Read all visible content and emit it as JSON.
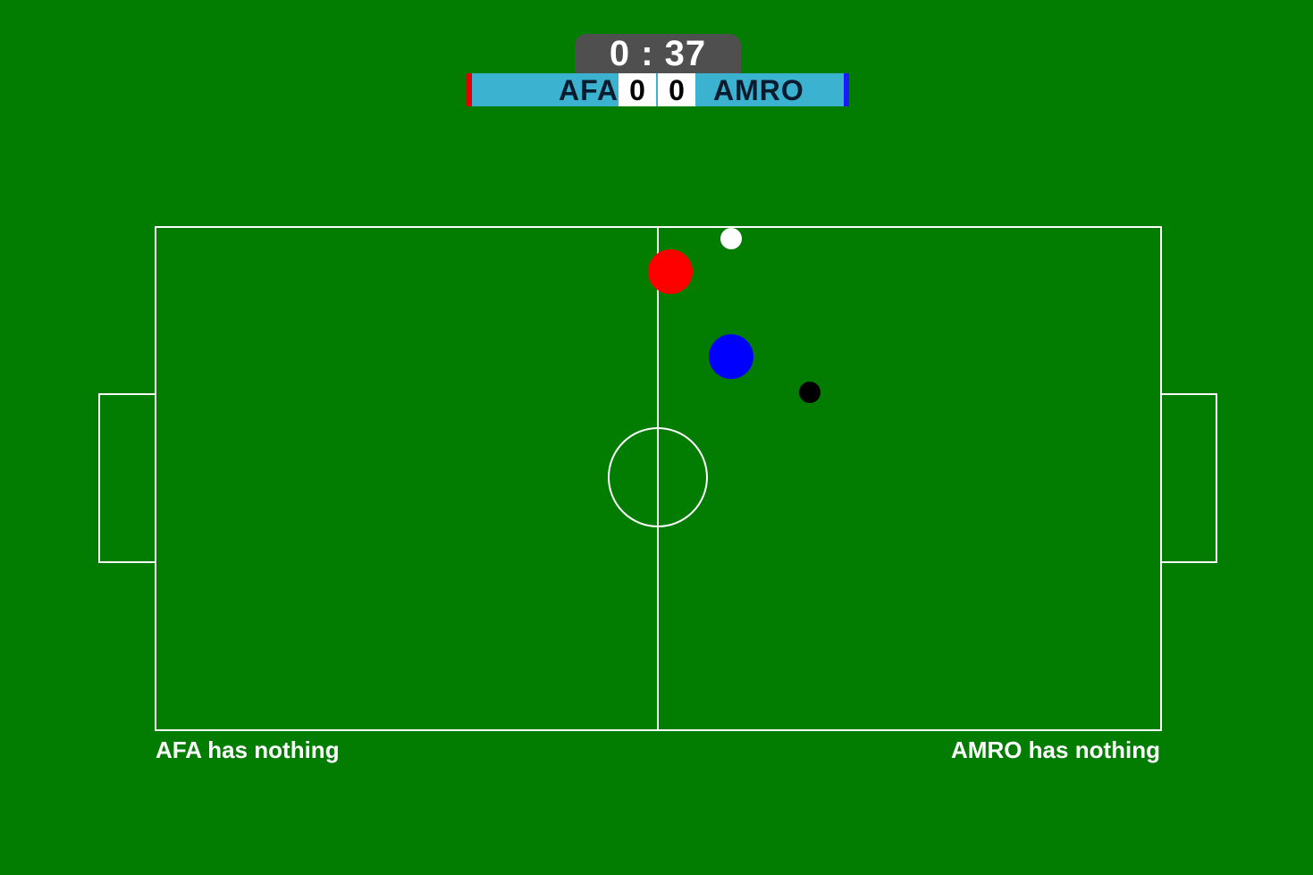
{
  "timer": {
    "text": "0 : 37"
  },
  "scoreboard": {
    "home_team": "AFA",
    "away_team": "AMRO",
    "home_score": "0",
    "away_score": "0",
    "home_color": "#e00000",
    "away_color": "#1a1aff"
  },
  "status": {
    "home": "AFA has nothing",
    "away": "AMRO has nothing"
  },
  "colors": {
    "field": "#027d02",
    "lines": "#ffffff",
    "home_player": "#ff0000",
    "away_player": "#0000ff",
    "ball": "#000000",
    "referee": "#ffffff"
  },
  "entities": [
    {
      "name": "home-player",
      "color": "#ff0000"
    },
    {
      "name": "away-player",
      "color": "#0000ff"
    },
    {
      "name": "ball",
      "color": "#000000"
    },
    {
      "name": "referee",
      "color": "#ffffff"
    }
  ]
}
